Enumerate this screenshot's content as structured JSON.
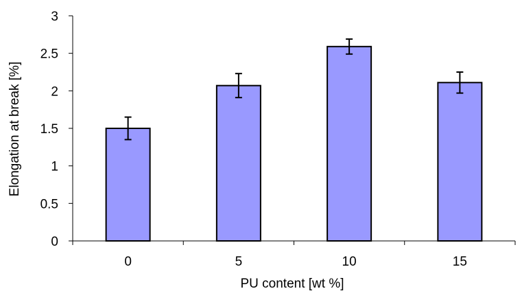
{
  "chart_data": {
    "type": "bar",
    "categories": [
      "0",
      "5",
      "10",
      "15"
    ],
    "values": [
      1.5,
      2.07,
      2.59,
      2.11
    ],
    "error": [
      0.15,
      0.16,
      0.1,
      0.14
    ],
    "xlabel": "PU content [wt %]",
    "ylabel": "Elongation at break [%]",
    "ylim": [
      0,
      3
    ],
    "yticks": [
      0,
      0.5,
      1,
      1.5,
      2,
      2.5,
      3
    ],
    "ytick_labels": [
      "0",
      "0.5",
      "1",
      "1.5",
      "2",
      "2.5",
      "3"
    ],
    "grid": false,
    "legend": "none",
    "bar_color": "#9999ff",
    "bar_edge_color": "#000000"
  }
}
